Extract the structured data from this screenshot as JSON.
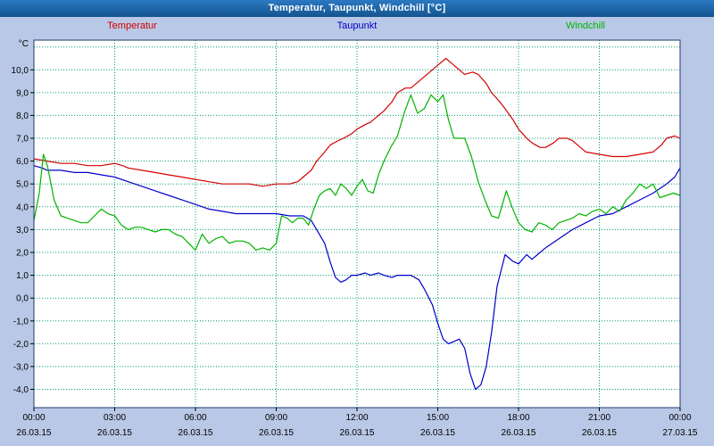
{
  "window": {
    "title": "Temperatur, Taupunkt, Windchill [°C]"
  },
  "colors": {
    "background": "#b9c8e6",
    "titlebar_top": "#2b79c2",
    "titlebar_bottom": "#14548e",
    "titlebar_text": "#ffffff",
    "plot_background": "#ffffff",
    "grid": "#00a070",
    "plot_border": "#1e3c6e",
    "axis_text": "#000000"
  },
  "legend": {
    "items": [
      {
        "label": "Temperatur",
        "color": "#d40000"
      },
      {
        "label": "Taupunkt",
        "color": "#0000cc"
      },
      {
        "label": "Windchill",
        "color": "#00b400"
      }
    ]
  },
  "chart_data": {
    "type": "line",
    "title": "Temperatur, Taupunkt, Windchill [°C]",
    "y_unit": "°C",
    "xlim": [
      0,
      24
    ],
    "ylim": [
      -4.8,
      11.3
    ],
    "grid": true,
    "legend_position": "top",
    "x_ticks": [
      {
        "time": "00:00",
        "date": "26.03.15",
        "h": 0
      },
      {
        "time": "03:00",
        "date": "26.03.15",
        "h": 3
      },
      {
        "time": "06:00",
        "date": "26.03.15",
        "h": 6
      },
      {
        "time": "09:00",
        "date": "26.03.15",
        "h": 9
      },
      {
        "time": "12:00",
        "date": "26.03.15",
        "h": 12
      },
      {
        "time": "15:00",
        "date": "26.03.15",
        "h": 15
      },
      {
        "time": "18:00",
        "date": "26.03.15",
        "h": 18
      },
      {
        "time": "21:00",
        "date": "26.03.15",
        "h": 21
      },
      {
        "time": "00:00",
        "date": "27.03.15",
        "h": 24
      }
    ],
    "y_ticks": [
      {
        "label": "10,0",
        "v": 10
      },
      {
        "label": "9,0",
        "v": 9
      },
      {
        "label": "8,0",
        "v": 8
      },
      {
        "label": "7,0",
        "v": 7
      },
      {
        "label": "6,0",
        "v": 6
      },
      {
        "label": "5,0",
        "v": 5
      },
      {
        "label": "4,0",
        "v": 4
      },
      {
        "label": "3,0",
        "v": 3
      },
      {
        "label": "2,0",
        "v": 2
      },
      {
        "label": "1,0",
        "v": 1
      },
      {
        "label": "0,0",
        "v": 0
      },
      {
        "label": "-1,0",
        "v": -1
      },
      {
        "label": "-2,0",
        "v": -2
      },
      {
        "label": "-3,0",
        "v": -3
      },
      {
        "label": "-4,0",
        "v": -4
      }
    ],
    "series": [
      {
        "name": "Temperatur",
        "color": "#d40000",
        "points": [
          [
            0,
            6.1
          ],
          [
            0.5,
            6.0
          ],
          [
            1,
            5.9
          ],
          [
            1.5,
            5.9
          ],
          [
            2,
            5.8
          ],
          [
            2.5,
            5.8
          ],
          [
            3,
            5.9
          ],
          [
            3.3,
            5.8
          ],
          [
            3.5,
            5.7
          ],
          [
            4,
            5.6
          ],
          [
            4.5,
            5.5
          ],
          [
            5,
            5.4
          ],
          [
            5.5,
            5.3
          ],
          [
            6,
            5.2
          ],
          [
            6.5,
            5.1
          ],
          [
            7,
            5.0
          ],
          [
            7.5,
            5.0
          ],
          [
            8,
            5.0
          ],
          [
            8.5,
            4.9
          ],
          [
            9,
            5.0
          ],
          [
            9.5,
            5.0
          ],
          [
            9.8,
            5.1
          ],
          [
            10,
            5.3
          ],
          [
            10.3,
            5.6
          ],
          [
            10.5,
            6.0
          ],
          [
            10.8,
            6.4
          ],
          [
            11,
            6.7
          ],
          [
            11.3,
            6.9
          ],
          [
            11.5,
            7.0
          ],
          [
            11.8,
            7.2
          ],
          [
            12,
            7.4
          ],
          [
            12.3,
            7.6
          ],
          [
            12.5,
            7.7
          ],
          [
            12.8,
            8.0
          ],
          [
            13,
            8.2
          ],
          [
            13.3,
            8.6
          ],
          [
            13.5,
            9.0
          ],
          [
            13.8,
            9.2
          ],
          [
            14,
            9.2
          ],
          [
            14.3,
            9.5
          ],
          [
            14.5,
            9.7
          ],
          [
            14.8,
            10.0
          ],
          [
            15,
            10.2
          ],
          [
            15.3,
            10.5
          ],
          [
            15.5,
            10.3
          ],
          [
            15.8,
            10.0
          ],
          [
            16,
            9.8
          ],
          [
            16.3,
            9.9
          ],
          [
            16.5,
            9.8
          ],
          [
            16.8,
            9.4
          ],
          [
            17,
            9.0
          ],
          [
            17.3,
            8.6
          ],
          [
            17.5,
            8.3
          ],
          [
            17.8,
            7.8
          ],
          [
            18,
            7.4
          ],
          [
            18.3,
            7.0
          ],
          [
            18.5,
            6.8
          ],
          [
            18.8,
            6.6
          ],
          [
            19,
            6.6
          ],
          [
            19.3,
            6.8
          ],
          [
            19.5,
            7.0
          ],
          [
            19.8,
            7.0
          ],
          [
            20,
            6.9
          ],
          [
            20.3,
            6.6
          ],
          [
            20.5,
            6.4
          ],
          [
            21,
            6.3
          ],
          [
            21.5,
            6.2
          ],
          [
            22,
            6.2
          ],
          [
            22.5,
            6.3
          ],
          [
            23,
            6.4
          ],
          [
            23.3,
            6.7
          ],
          [
            23.5,
            7.0
          ],
          [
            23.8,
            7.1
          ],
          [
            24,
            7.0
          ]
        ]
      },
      {
        "name": "Taupunkt",
        "color": "#0000cc",
        "points": [
          [
            0,
            5.8
          ],
          [
            0.3,
            5.7
          ],
          [
            0.5,
            5.6
          ],
          [
            1,
            5.6
          ],
          [
            1.5,
            5.5
          ],
          [
            2,
            5.5
          ],
          [
            2.5,
            5.4
          ],
          [
            3,
            5.3
          ],
          [
            3.5,
            5.1
          ],
          [
            4,
            4.9
          ],
          [
            4.5,
            4.7
          ],
          [
            5,
            4.5
          ],
          [
            5.5,
            4.3
          ],
          [
            6,
            4.1
          ],
          [
            6.5,
            3.9
          ],
          [
            7,
            3.8
          ],
          [
            7.5,
            3.7
          ],
          [
            8,
            3.7
          ],
          [
            8.5,
            3.7
          ],
          [
            9,
            3.7
          ],
          [
            9.5,
            3.6
          ],
          [
            10,
            3.6
          ],
          [
            10.3,
            3.4
          ],
          [
            10.5,
            3.0
          ],
          [
            10.8,
            2.4
          ],
          [
            11,
            1.6
          ],
          [
            11.2,
            0.9
          ],
          [
            11.4,
            0.7
          ],
          [
            11.6,
            0.8
          ],
          [
            11.8,
            1.0
          ],
          [
            12,
            1.0
          ],
          [
            12.3,
            1.1
          ],
          [
            12.5,
            1.0
          ],
          [
            12.8,
            1.1
          ],
          [
            13,
            1.0
          ],
          [
            13.3,
            0.9
          ],
          [
            13.5,
            1.0
          ],
          [
            14,
            1.0
          ],
          [
            14.3,
            0.8
          ],
          [
            14.5,
            0.4
          ],
          [
            14.8,
            -0.3
          ],
          [
            15,
            -1.1
          ],
          [
            15.2,
            -1.8
          ],
          [
            15.4,
            -2.0
          ],
          [
            15.6,
            -1.9
          ],
          [
            15.8,
            -1.8
          ],
          [
            16,
            -2.2
          ],
          [
            16.2,
            -3.3
          ],
          [
            16.4,
            -4.0
          ],
          [
            16.6,
            -3.8
          ],
          [
            16.8,
            -3.0
          ],
          [
            17,
            -1.5
          ],
          [
            17.2,
            0.5
          ],
          [
            17.5,
            1.9
          ],
          [
            17.8,
            1.6
          ],
          [
            18,
            1.5
          ],
          [
            18.3,
            1.9
          ],
          [
            18.5,
            1.7
          ],
          [
            18.8,
            2.0
          ],
          [
            19,
            2.2
          ],
          [
            19.5,
            2.6
          ],
          [
            20,
            3.0
          ],
          [
            20.5,
            3.3
          ],
          [
            21,
            3.6
          ],
          [
            21.5,
            3.7
          ],
          [
            22,
            4.0
          ],
          [
            22.5,
            4.3
          ],
          [
            23,
            4.6
          ],
          [
            23.5,
            5.0
          ],
          [
            23.8,
            5.3
          ],
          [
            24,
            5.7
          ]
        ]
      },
      {
        "name": "Windchill",
        "color": "#00b400",
        "points": [
          [
            0,
            3.4
          ],
          [
            0.2,
            4.6
          ],
          [
            0.35,
            6.3
          ],
          [
            0.5,
            5.8
          ],
          [
            0.75,
            4.3
          ],
          [
            1,
            3.6
          ],
          [
            1.25,
            3.5
          ],
          [
            1.5,
            3.4
          ],
          [
            1.75,
            3.3
          ],
          [
            2,
            3.3
          ],
          [
            2.25,
            3.6
          ],
          [
            2.5,
            3.9
          ],
          [
            2.75,
            3.7
          ],
          [
            3,
            3.6
          ],
          [
            3.25,
            3.2
          ],
          [
            3.5,
            3.0
          ],
          [
            3.75,
            3.1
          ],
          [
            4,
            3.1
          ],
          [
            4.25,
            3.0
          ],
          [
            4.5,
            2.9
          ],
          [
            4.75,
            3.0
          ],
          [
            5,
            3.0
          ],
          [
            5.25,
            2.8
          ],
          [
            5.5,
            2.7
          ],
          [
            5.75,
            2.4
          ],
          [
            6,
            2.1
          ],
          [
            6.25,
            2.8
          ],
          [
            6.5,
            2.4
          ],
          [
            6.75,
            2.6
          ],
          [
            7,
            2.7
          ],
          [
            7.25,
            2.4
          ],
          [
            7.5,
            2.5
          ],
          [
            7.75,
            2.5
          ],
          [
            8,
            2.4
          ],
          [
            8.25,
            2.1
          ],
          [
            8.5,
            2.2
          ],
          [
            8.75,
            2.1
          ],
          [
            9,
            2.4
          ],
          [
            9.2,
            3.6
          ],
          [
            9.4,
            3.5
          ],
          [
            9.6,
            3.3
          ],
          [
            9.8,
            3.5
          ],
          [
            10,
            3.5
          ],
          [
            10.2,
            3.2
          ],
          [
            10.4,
            3.9
          ],
          [
            10.6,
            4.5
          ],
          [
            10.8,
            4.7
          ],
          [
            11,
            4.8
          ],
          [
            11.2,
            4.5
          ],
          [
            11.4,
            5.0
          ],
          [
            11.6,
            4.8
          ],
          [
            11.8,
            4.5
          ],
          [
            12,
            4.9
          ],
          [
            12.2,
            5.2
          ],
          [
            12.4,
            4.7
          ],
          [
            12.6,
            4.6
          ],
          [
            12.8,
            5.4
          ],
          [
            13,
            6.0
          ],
          [
            13.25,
            6.6
          ],
          [
            13.5,
            7.1
          ],
          [
            13.75,
            8.1
          ],
          [
            14,
            8.9
          ],
          [
            14.25,
            8.1
          ],
          [
            14.5,
            8.3
          ],
          [
            14.75,
            8.9
          ],
          [
            15,
            8.6
          ],
          [
            15.2,
            8.9
          ],
          [
            15.4,
            7.8
          ],
          [
            15.6,
            7.0
          ],
          [
            15.8,
            7.0
          ],
          [
            16,
            7.0
          ],
          [
            16.25,
            6.2
          ],
          [
            16.5,
            5.1
          ],
          [
            16.75,
            4.3
          ],
          [
            17,
            3.6
          ],
          [
            17.25,
            3.5
          ],
          [
            17.4,
            4.1
          ],
          [
            17.55,
            4.7
          ],
          [
            17.75,
            4.0
          ],
          [
            18,
            3.3
          ],
          [
            18.25,
            3.0
          ],
          [
            18.5,
            2.9
          ],
          [
            18.75,
            3.3
          ],
          [
            19,
            3.2
          ],
          [
            19.25,
            3.0
          ],
          [
            19.5,
            3.3
          ],
          [
            19.75,
            3.4
          ],
          [
            20,
            3.5
          ],
          [
            20.25,
            3.7
          ],
          [
            20.5,
            3.6
          ],
          [
            20.75,
            3.8
          ],
          [
            21,
            3.9
          ],
          [
            21.25,
            3.7
          ],
          [
            21.5,
            4.0
          ],
          [
            21.75,
            3.8
          ],
          [
            22,
            4.3
          ],
          [
            22.25,
            4.6
          ],
          [
            22.5,
            5.0
          ],
          [
            22.75,
            4.8
          ],
          [
            23,
            5.0
          ],
          [
            23.25,
            4.4
          ],
          [
            23.5,
            4.5
          ],
          [
            23.75,
            4.6
          ],
          [
            24,
            4.5
          ]
        ]
      }
    ]
  }
}
